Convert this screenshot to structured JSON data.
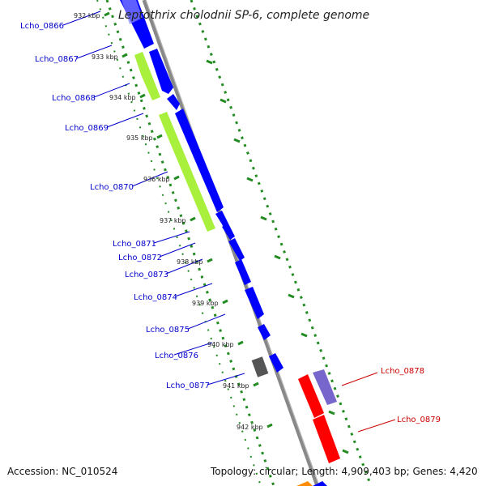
{
  "title": "Leptothrix cholodnii SP-6, complete genome",
  "footer": {
    "accession": "Accession: NC_010524",
    "summary": "Topology: circular; Length: 4,909,403 bp; Genes: 4,420"
  },
  "colors": {
    "forward_cds": "#0000ff",
    "reverse_cds_green": "#a8f03c",
    "rrna_red": "#ff0000",
    "misc_purple": "#7766cc",
    "misc_gray": "#555555",
    "backbone": "#888888",
    "tick_green": "#228b22",
    "label_blue": "#0000cc",
    "label_red": "#cc0000"
  },
  "ticks": [
    {
      "label": "932 kbp"
    },
    {
      "label": "933 kbp"
    },
    {
      "label": "934 kbp"
    },
    {
      "label": "935 kbp"
    },
    {
      "label": "936 kbp"
    },
    {
      "label": "937 kbp"
    },
    {
      "label": "938 kbp"
    },
    {
      "label": "939 kbp"
    },
    {
      "label": "940 kbp"
    },
    {
      "label": "941 kbp"
    },
    {
      "label": "942 kbp"
    }
  ],
  "gene_labels": [
    {
      "text": "Lcho_0866",
      "color": "label_blue"
    },
    {
      "text": "Lcho_0867",
      "color": "label_blue"
    },
    {
      "text": "Lcho_0868",
      "color": "label_blue"
    },
    {
      "text": "Lcho_0869",
      "color": "label_blue"
    },
    {
      "text": "Lcho_0870",
      "color": "label_blue"
    },
    {
      "text": "Lcho_0871",
      "color": "label_blue"
    },
    {
      "text": "Lcho_0872",
      "color": "label_blue"
    },
    {
      "text": "Lcho_0873",
      "color": "label_blue"
    },
    {
      "text": "Lcho_0874",
      "color": "label_blue"
    },
    {
      "text": "Lcho_0875",
      "color": "label_blue"
    },
    {
      "text": "Lcho_0876",
      "color": "label_blue"
    },
    {
      "text": "Lcho_0877",
      "color": "label_blue"
    },
    {
      "text": "Lcho_0878",
      "color": "label_red"
    },
    {
      "text": "Lcho_0879",
      "color": "label_red"
    }
  ]
}
